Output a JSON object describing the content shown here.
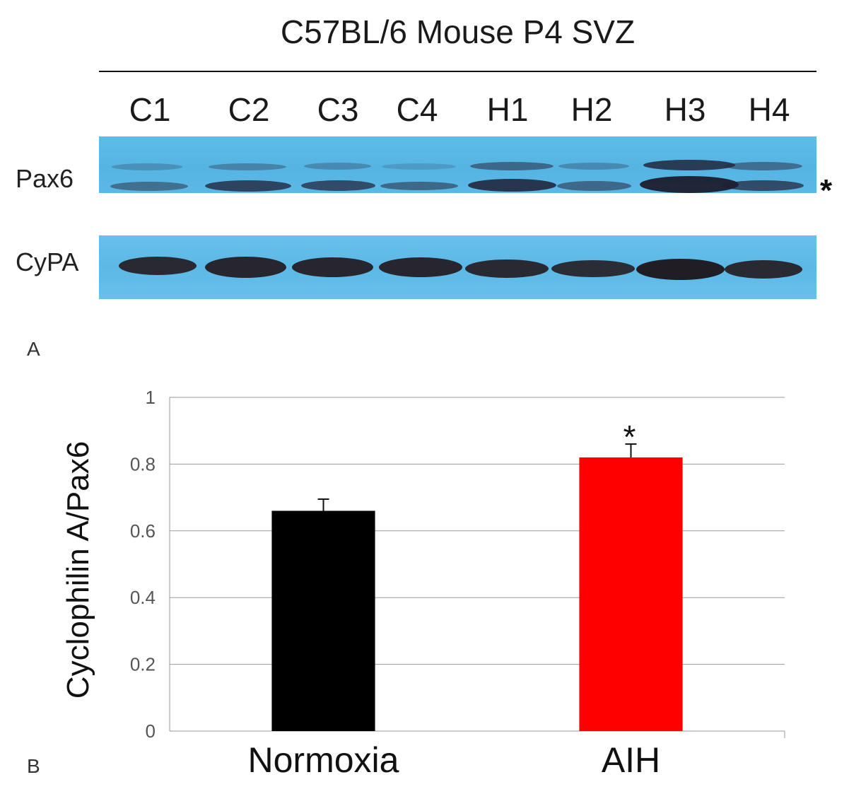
{
  "blot": {
    "title": "C57BL/6 Mouse P4 SVZ",
    "lanes": [
      "C1",
      "C2",
      "C3",
      "C4",
      "H1",
      "H2",
      "H3",
      "H4"
    ],
    "rows": [
      {
        "label": "Pax6",
        "marker": "*"
      },
      {
        "label": "CyPA"
      }
    ],
    "colors": {
      "membrane": "#5bb8e6",
      "band": "#2a2a3a"
    }
  },
  "panels": {
    "a": "A",
    "b": "B"
  },
  "chart_data": {
    "type": "bar",
    "categories": [
      "Normoxia",
      "AIH"
    ],
    "values": [
      0.66,
      0.82
    ],
    "error": [
      0.035,
      0.04
    ],
    "colors": [
      "#000000",
      "#ff0000"
    ],
    "ylabel": "Cyclophilin A/Pax6",
    "ylim": [
      0,
      1
    ],
    "yticks": [
      "0",
      "0.2",
      "0.4",
      "0.6",
      "0.8",
      "1"
    ],
    "annotations": [
      {
        "category": "AIH",
        "text": "*"
      }
    ],
    "grid": true
  }
}
